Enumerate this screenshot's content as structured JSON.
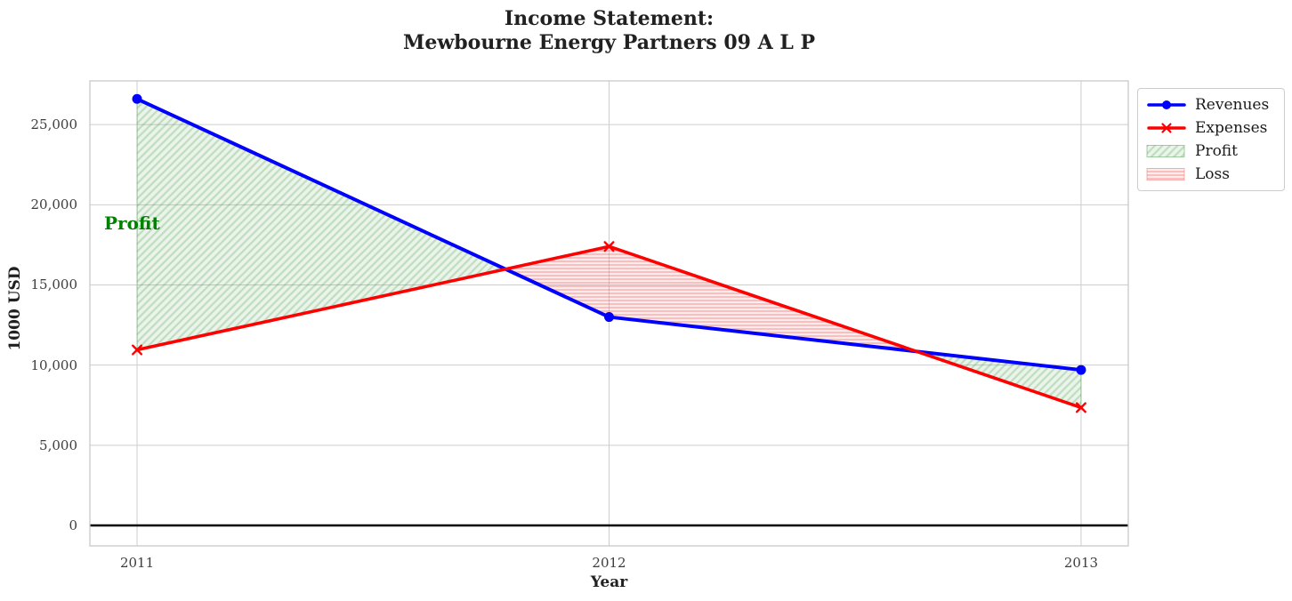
{
  "title": {
    "line1": "Income Statement:",
    "line2": "Mewbourne Energy Partners 09 A L P"
  },
  "axis_labels": {
    "x": "Year",
    "y": "1000 USD"
  },
  "annotations": {
    "profit": {
      "text": "Profit",
      "color": "#008000"
    }
  },
  "legend": {
    "items": [
      {
        "label": "Revenues",
        "type": "line-circle",
        "color": "#0000FF"
      },
      {
        "label": "Expenses",
        "type": "line-x",
        "color": "#FF0000"
      },
      {
        "label": "Profit",
        "type": "patch-diagonal-hatch",
        "color": "#3c963c"
      },
      {
        "label": "Loss",
        "type": "patch-horizontal-hatch",
        "color": "#f06464"
      }
    ]
  },
  "chart_data": {
    "type": "line",
    "title": "Income Statement: Mewbourne Energy Partners 09 A L P",
    "x": [
      2011,
      2012,
      2013
    ],
    "series": [
      {
        "name": "Revenues",
        "values": [
          26600,
          13000,
          9700
        ],
        "color": "#0000FF",
        "marker": "circle",
        "line_width": 4
      },
      {
        "name": "Expenses",
        "values": [
          10950,
          17400,
          7350
        ],
        "color": "#FF0000",
        "marker": "x",
        "line_width": 3.6
      }
    ],
    "fill_between": [
      {
        "name": "Profit",
        "where": "revenues >= expenses",
        "fill_color": "#3c963c",
        "hatch": "///"
      },
      {
        "name": "Loss",
        "where": "expenses > revenues",
        "fill_color": "#f06464",
        "hatch": "---"
      }
    ],
    "xlabel": "Year",
    "ylabel": "1000 USD",
    "xticks": [
      2011,
      2012,
      2013
    ],
    "yticks": [
      0,
      5000,
      10000,
      15000,
      20000,
      25000
    ],
    "ytick_format": "thousands-comma",
    "xlim": [
      2010.9,
      2013.1
    ],
    "ylim": [
      -1275,
      27725
    ],
    "grid": true,
    "zero_line": true,
    "legend_position": "upper right",
    "units": "1000 USD"
  }
}
